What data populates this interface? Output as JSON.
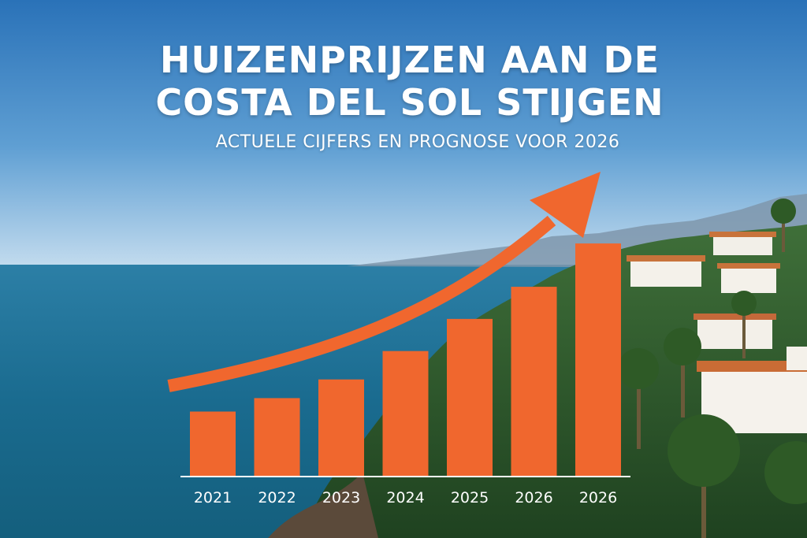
{
  "headline": {
    "line1": "HUIZENPRIJZEN AAN DE",
    "line2": "COSTA DEL SOL STIJGEN",
    "subtitle": "ACTUELE CIJFERS EN PROGNOSE VOOR 2026"
  },
  "colors": {
    "accent": "#f0672e",
    "sky_top": "#2f78bd",
    "sky_horizon": "#b9d4ea",
    "sea": "#1c6e93"
  },
  "chart_data": {
    "type": "bar",
    "categories": [
      "2021",
      "2022",
      "2023",
      "2024",
      "2025",
      "2026",
      "2026"
    ],
    "values": [
      87,
      105,
      130,
      168,
      211,
      254,
      312
    ],
    "ylim": [
      0,
      330
    ],
    "grid": false,
    "legend": "none",
    "annotations": [
      {
        "type": "trend-arrow",
        "direction": "up"
      }
    ]
  }
}
